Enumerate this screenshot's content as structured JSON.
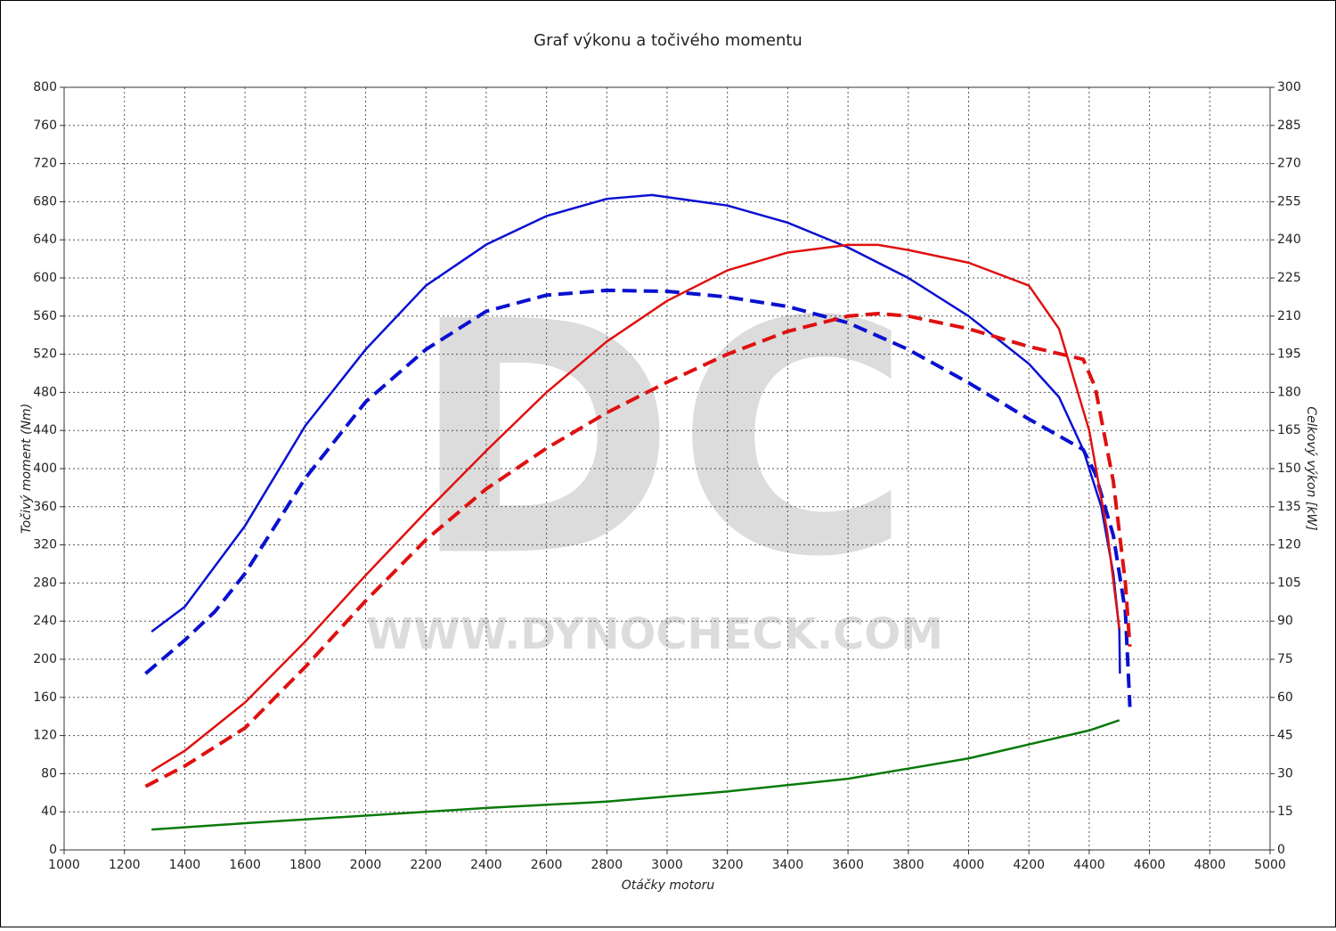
{
  "chart_data": {
    "type": "line",
    "title": "Graf výkonu a točivého momentu",
    "xlabel": "Otáčky motoru",
    "ylabel": "Točivý moment (Nm)",
    "y2label": "Celkový výkon [kW]",
    "watermark": {
      "logo": "DC",
      "url": "WWW.DYNOCHECK.COM"
    },
    "grid": true,
    "xlim": [
      1000,
      5000
    ],
    "xticks": [
      1000,
      1200,
      1400,
      1600,
      1800,
      2000,
      2200,
      2400,
      2600,
      2800,
      3000,
      3200,
      3400,
      3600,
      3800,
      4000,
      4200,
      4400,
      4600,
      4800,
      5000
    ],
    "ylim": [
      0,
      800
    ],
    "yticks": [
      0,
      40,
      80,
      120,
      160,
      200,
      240,
      280,
      320,
      360,
      400,
      440,
      480,
      520,
      560,
      600,
      640,
      680,
      720,
      760,
      800
    ],
    "y2lim": [
      0,
      300
    ],
    "y2ticks": [
      0,
      15,
      30,
      45,
      60,
      75,
      90,
      105,
      120,
      135,
      150,
      165,
      180,
      195,
      210,
      225,
      240,
      255,
      270,
      285,
      300
    ],
    "series": [
      {
        "color": "#0a10d0",
        "dash": false,
        "axis": "y",
        "x": [
          1290,
          1400,
          1600,
          1800,
          2000,
          2200,
          2400,
          2600,
          2800,
          2950,
          3200,
          3400,
          3600,
          3800,
          4000,
          4200,
          4300,
          4380,
          4440,
          4480,
          4500,
          4502
        ],
        "values": [
          229,
          255,
          340,
          445,
          525,
          592,
          635,
          665,
          683,
          687,
          676,
          658,
          632,
          600,
          560,
          510,
          475,
          420,
          360,
          290,
          230,
          185
        ]
      },
      {
        "color": "#0a10d0",
        "dash": true,
        "axis": "y",
        "x": [
          1270,
          1400,
          1500,
          1600,
          1700,
          1800,
          1900,
          2000,
          2200,
          2400,
          2600,
          2800,
          3000,
          3200,
          3400,
          3600,
          3800,
          4000,
          4200,
          4380,
          4420,
          4480,
          4520,
          4535
        ],
        "values": [
          185,
          220,
          250,
          290,
          340,
          390,
          430,
          470,
          525,
          565,
          582,
          587,
          586,
          580,
          570,
          553,
          525,
          490,
          452,
          420,
          395,
          330,
          250,
          150
        ]
      },
      {
        "color": "#e01010",
        "dash": false,
        "axis": "y2",
        "x": [
          1290,
          1400,
          1600,
          1800,
          2000,
          2200,
          2400,
          2600,
          2800,
          3000,
          3200,
          3400,
          3600,
          3700,
          3800,
          4000,
          4200,
          4300,
          4400,
          4460,
          4500
        ],
        "values": [
          31,
          39,
          58,
          82,
          108,
          133,
          157,
          180,
          200,
          216,
          228,
          235,
          238,
          238,
          236,
          231,
          222,
          205,
          165,
          125,
          87
        ]
      },
      {
        "color": "#e01010",
        "dash": true,
        "axis": "y2",
        "x": [
          1270,
          1400,
          1600,
          1800,
          2000,
          2200,
          2400,
          2600,
          2800,
          3000,
          3200,
          3400,
          3600,
          3700,
          3800,
          4000,
          4200,
          4380,
          4420,
          4480,
          4520,
          4535
        ],
        "values": [
          25,
          33,
          48,
          72,
          98,
          122,
          142,
          158,
          172,
          184,
          195,
          204,
          210,
          211,
          210,
          205,
          198,
          193,
          182,
          145,
          105,
          80
        ]
      },
      {
        "color": "#0a7a0a",
        "dash": false,
        "axis": "y2",
        "x": [
          1290,
          1600,
          2000,
          2400,
          2800,
          3200,
          3600,
          4000,
          4200,
          4400,
          4500
        ],
        "values": [
          8,
          10.5,
          13.5,
          16.5,
          19,
          23,
          28,
          36,
          41.5,
          47,
          51
        ]
      }
    ]
  }
}
